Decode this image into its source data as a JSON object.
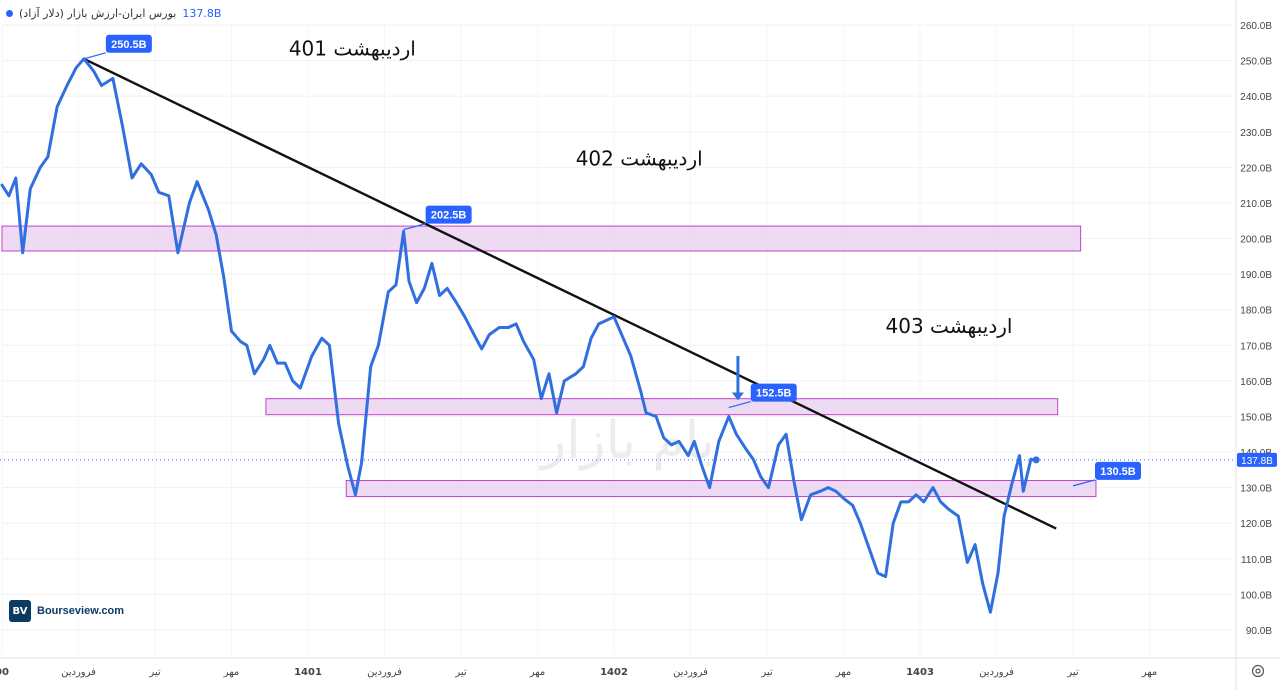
{
  "header": {
    "title": "بورس ایران-ارزش بازار (دلار آزاد)",
    "last_value": "137.8B"
  },
  "watermark": "بام بازار",
  "logo": {
    "mark": "BV",
    "text": "Bourseview.com"
  },
  "colors": {
    "series": "#2f6fe0",
    "zone_fill": "#e9cdef",
    "zone_stroke": "#c044c9",
    "trendline": "#111111",
    "badge": "#2962ff"
  },
  "chart_data": {
    "type": "line",
    "y_unit": "B",
    "ylim": [
      87,
      264
    ],
    "y_ticks": [
      "260.0B",
      "250.0B",
      "240.0B",
      "230.0B",
      "220.0B",
      "210.0B",
      "200.0B",
      "190.0B",
      "180.0B",
      "170.0B",
      "160.0B",
      "150.0B",
      "140.0B",
      "130.0B",
      "120.0B",
      "110.0B",
      "100.0B",
      "90.0B"
    ],
    "y_tick_values": [
      260,
      250,
      240,
      230,
      220,
      210,
      200,
      190,
      180,
      170,
      160,
      150,
      140,
      130,
      120,
      110,
      100,
      90
    ],
    "x_ticks": [
      {
        "label": "00",
        "t": 0.0,
        "bold": true
      },
      {
        "label": "فروردین",
        "t": 1.0
      },
      {
        "label": "تیر",
        "t": 2.0
      },
      {
        "label": "مهر",
        "t": 3.0
      },
      {
        "label": "1401",
        "t": 4.0,
        "bold": true
      },
      {
        "label": "فروردین",
        "t": 5.0
      },
      {
        "label": "تیر",
        "t": 6.0
      },
      {
        "label": "مهر",
        "t": 7.0
      },
      {
        "label": "1402",
        "t": 8.0,
        "bold": true
      },
      {
        "label": "فروردین",
        "t": 9.0
      },
      {
        "label": "تیر",
        "t": 10.0
      },
      {
        "label": "مهر",
        "t": 11.0
      },
      {
        "label": "1403",
        "t": 12.0,
        "bold": true
      },
      {
        "label": "فروردین",
        "t": 13.0
      },
      {
        "label": "تیر",
        "t": 14.0
      },
      {
        "label": "مهر",
        "t": 15.0
      }
    ],
    "series": [
      {
        "points": [
          [
            0.0,
            215
          ],
          [
            0.09,
            212
          ],
          [
            0.18,
            217
          ],
          [
            0.27,
            196
          ],
          [
            0.37,
            214
          ],
          [
            0.5,
            220
          ],
          [
            0.6,
            223
          ],
          [
            0.72,
            237
          ],
          [
            0.85,
            243
          ],
          [
            0.97,
            248
          ],
          [
            1.07,
            250.5
          ],
          [
            1.2,
            247
          ],
          [
            1.3,
            243
          ],
          [
            1.45,
            245
          ],
          [
            1.58,
            231
          ],
          [
            1.7,
            217
          ],
          [
            1.82,
            221
          ],
          [
            1.95,
            218
          ],
          [
            2.05,
            213
          ],
          [
            2.18,
            212
          ],
          [
            2.3,
            196
          ],
          [
            2.45,
            210
          ],
          [
            2.55,
            216
          ],
          [
            2.7,
            208
          ],
          [
            2.8,
            201
          ],
          [
            2.9,
            189
          ],
          [
            3.0,
            174
          ],
          [
            3.12,
            171
          ],
          [
            3.2,
            170
          ],
          [
            3.3,
            162
          ],
          [
            3.42,
            166
          ],
          [
            3.5,
            170
          ],
          [
            3.6,
            165
          ],
          [
            3.7,
            165
          ],
          [
            3.8,
            160
          ],
          [
            3.9,
            158
          ],
          [
            4.05,
            167
          ],
          [
            4.18,
            172
          ],
          [
            4.28,
            170
          ],
          [
            4.4,
            148
          ],
          [
            4.52,
            136
          ],
          [
            4.62,
            128
          ],
          [
            4.7,
            137
          ],
          [
            4.82,
            164
          ],
          [
            4.92,
            170
          ],
          [
            5.05,
            185
          ],
          [
            5.15,
            187
          ],
          [
            5.25,
            202
          ],
          [
            5.32,
            188
          ],
          [
            5.42,
            182
          ],
          [
            5.52,
            186
          ],
          [
            5.62,
            193
          ],
          [
            5.72,
            184
          ],
          [
            5.82,
            186
          ],
          [
            5.94,
            182
          ],
          [
            6.05,
            178
          ],
          [
            6.17,
            173
          ],
          [
            6.27,
            169
          ],
          [
            6.37,
            173
          ],
          [
            6.5,
            175
          ],
          [
            6.62,
            175
          ],
          [
            6.72,
            176
          ],
          [
            6.82,
            171
          ],
          [
            6.95,
            166
          ],
          [
            7.05,
            155
          ],
          [
            7.15,
            162
          ],
          [
            7.25,
            151
          ],
          [
            7.35,
            160
          ],
          [
            7.5,
            162
          ],
          [
            7.6,
            164
          ],
          [
            7.7,
            172
          ],
          [
            7.8,
            176
          ],
          [
            7.9,
            177
          ],
          [
            8.0,
            178
          ],
          [
            8.12,
            172
          ],
          [
            8.22,
            167
          ],
          [
            8.35,
            157
          ],
          [
            8.42,
            151
          ],
          [
            8.55,
            150
          ],
          [
            8.65,
            144
          ],
          [
            8.75,
            142
          ],
          [
            8.85,
            143
          ],
          [
            8.97,
            139
          ],
          [
            9.05,
            143
          ],
          [
            9.15,
            136
          ],
          [
            9.25,
            130
          ],
          [
            9.37,
            143
          ],
          [
            9.5,
            150
          ],
          [
            9.6,
            145
          ],
          [
            9.72,
            141
          ],
          [
            9.82,
            138
          ],
          [
            9.92,
            133
          ],
          [
            10.02,
            130
          ],
          [
            10.15,
            142
          ],
          [
            10.25,
            145
          ],
          [
            10.35,
            132
          ],
          [
            10.45,
            121
          ],
          [
            10.57,
            128
          ],
          [
            10.7,
            129
          ],
          [
            10.8,
            130
          ],
          [
            10.9,
            129
          ],
          [
            11.0,
            127
          ],
          [
            11.12,
            125
          ],
          [
            11.22,
            120
          ],
          [
            11.35,
            112
          ],
          [
            11.45,
            106
          ],
          [
            11.55,
            105
          ],
          [
            11.65,
            120
          ],
          [
            11.75,
            126
          ],
          [
            11.85,
            126
          ],
          [
            11.95,
            128
          ],
          [
            12.05,
            126
          ],
          [
            12.17,
            130
          ],
          [
            12.27,
            126
          ],
          [
            12.37,
            124
          ],
          [
            12.5,
            122
          ],
          [
            12.62,
            109
          ],
          [
            12.72,
            114
          ],
          [
            12.82,
            103
          ],
          [
            12.92,
            95
          ],
          [
            13.02,
            106
          ],
          [
            13.1,
            122
          ],
          [
            13.2,
            131
          ],
          [
            13.3,
            139
          ],
          [
            13.35,
            129
          ],
          [
            13.45,
            138
          ],
          [
            13.48,
            137.8
          ]
        ]
      }
    ],
    "zones": [
      {
        "t_start": 0.0,
        "t_end": 14.1,
        "y_low": 196.5,
        "y_high": 203.5
      },
      {
        "t_start": 3.45,
        "t_end": 13.8,
        "y_low": 150.5,
        "y_high": 155.0
      },
      {
        "t_start": 4.5,
        "t_end": 14.3,
        "y_low": 127.5,
        "y_high": 132.0
      }
    ],
    "trendline": {
      "from": [
        1.07,
        250.5
      ],
      "to": [
        13.78,
        118.5
      ]
    },
    "current_value": 137.8,
    "current_label": "137.8B",
    "badges": [
      {
        "text": "250.5B",
        "t": 1.07,
        "y": 250.5,
        "offset": "right"
      },
      {
        "text": "202.5B",
        "t": 5.25,
        "y": 202.5,
        "offset": "right"
      },
      {
        "text": "152.5B",
        "t": 9.5,
        "y": 152.5,
        "offset": "right"
      },
      {
        "text": "130.5B",
        "t": 14.0,
        "y": 130.5,
        "offset": "right"
      }
    ],
    "annotations": [
      {
        "text": "اردیبهشت 401",
        "t": 2.05,
        "y": 251.5
      },
      {
        "text": "اردیبهشت 402",
        "t": 5.8,
        "y": 220.5
      },
      {
        "text": "اردیبهشت 403",
        "t": 9.85,
        "y": 173.5
      }
    ]
  }
}
